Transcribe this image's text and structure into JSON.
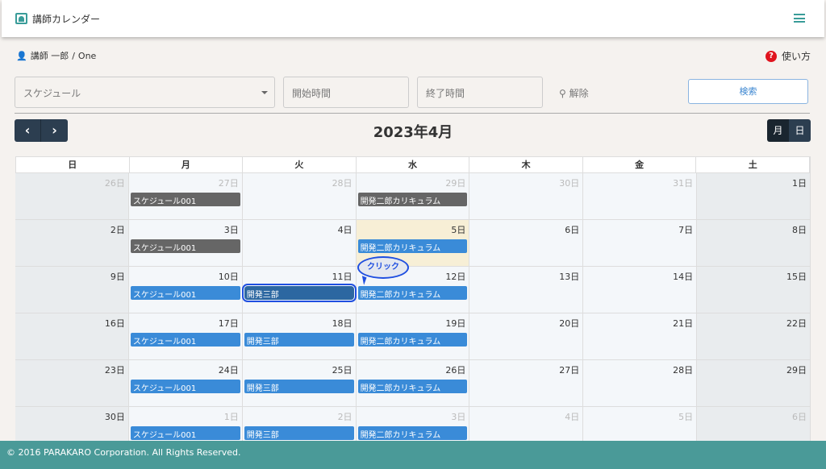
{
  "header": {
    "title": "講師カレンダー"
  },
  "breadcrumb": {
    "user": "講師 一郎",
    "sep": "/",
    "name": "One"
  },
  "help": {
    "icon": "?",
    "label": "使い方"
  },
  "filters": {
    "schedule_placeholder": "スケジュール",
    "start_placeholder": "開始時間",
    "end_placeholder": "終了時間",
    "clear_label": "解除",
    "search_label": "検索"
  },
  "calendar": {
    "prev": "‹",
    "next": "›",
    "title": "2023年4月",
    "view_month": "月",
    "view_day": "日",
    "weekdays": [
      "日",
      "月",
      "火",
      "水",
      "木",
      "金",
      "土"
    ],
    "weeks": [
      [
        {
          "d": "26日",
          "m": 1
        },
        {
          "d": "27日",
          "m": 1,
          "e": "スケジュール001",
          "s": "past"
        },
        {
          "d": "28日",
          "m": 1
        },
        {
          "d": "29日",
          "m": 1,
          "e": "開発二郎カリキュラム",
          "s": "past"
        },
        {
          "d": "30日",
          "m": 1
        },
        {
          "d": "31日",
          "m": 1
        },
        {
          "d": "1日"
        }
      ],
      [
        {
          "d": "2日"
        },
        {
          "d": "3日",
          "e": "スケジュール001",
          "s": "past"
        },
        {
          "d": "4日"
        },
        {
          "d": "5日",
          "t": 1,
          "e": "開発二郎カリキュラム"
        },
        {
          "d": "6日"
        },
        {
          "d": "7日"
        },
        {
          "d": "8日"
        }
      ],
      [
        {
          "d": "9日"
        },
        {
          "d": "10日",
          "e": "スケジュール001"
        },
        {
          "d": "11日",
          "e": "開発三部",
          "s": "sel"
        },
        {
          "d": "12日",
          "e": "開発二郎カリキュラム"
        },
        {
          "d": "13日"
        },
        {
          "d": "14日"
        },
        {
          "d": "15日"
        }
      ],
      [
        {
          "d": "16日"
        },
        {
          "d": "17日",
          "e": "スケジュール001"
        },
        {
          "d": "18日",
          "e": "開発三部"
        },
        {
          "d": "19日",
          "e": "開発二郎カリキュラム"
        },
        {
          "d": "20日"
        },
        {
          "d": "21日"
        },
        {
          "d": "22日"
        }
      ],
      [
        {
          "d": "23日"
        },
        {
          "d": "24日",
          "e": "スケジュール001"
        },
        {
          "d": "25日",
          "e": "開発三部"
        },
        {
          "d": "26日",
          "e": "開発二郎カリキュラム"
        },
        {
          "d": "27日"
        },
        {
          "d": "28日"
        },
        {
          "d": "29日"
        }
      ],
      [
        {
          "d": "30日"
        },
        {
          "d": "1日",
          "m": 1,
          "e": "スケジュール001"
        },
        {
          "d": "2日",
          "m": 1,
          "e": "開発三部"
        },
        {
          "d": "3日",
          "m": 1,
          "e": "開発二郎カリキュラム"
        },
        {
          "d": "4日",
          "m": 1
        },
        {
          "d": "5日",
          "m": 1
        },
        {
          "d": "6日",
          "m": 1
        }
      ]
    ]
  },
  "callout": {
    "label": "クリック"
  },
  "footer": {
    "text": "© 2016 PARAKARO Corporation. All Rights Reserved."
  },
  "colors": {
    "accent": "#3a9c99",
    "event": "#3a8bd8",
    "event_past": "#666666",
    "today": "#f7efd6",
    "footer": "#4a9a98"
  }
}
